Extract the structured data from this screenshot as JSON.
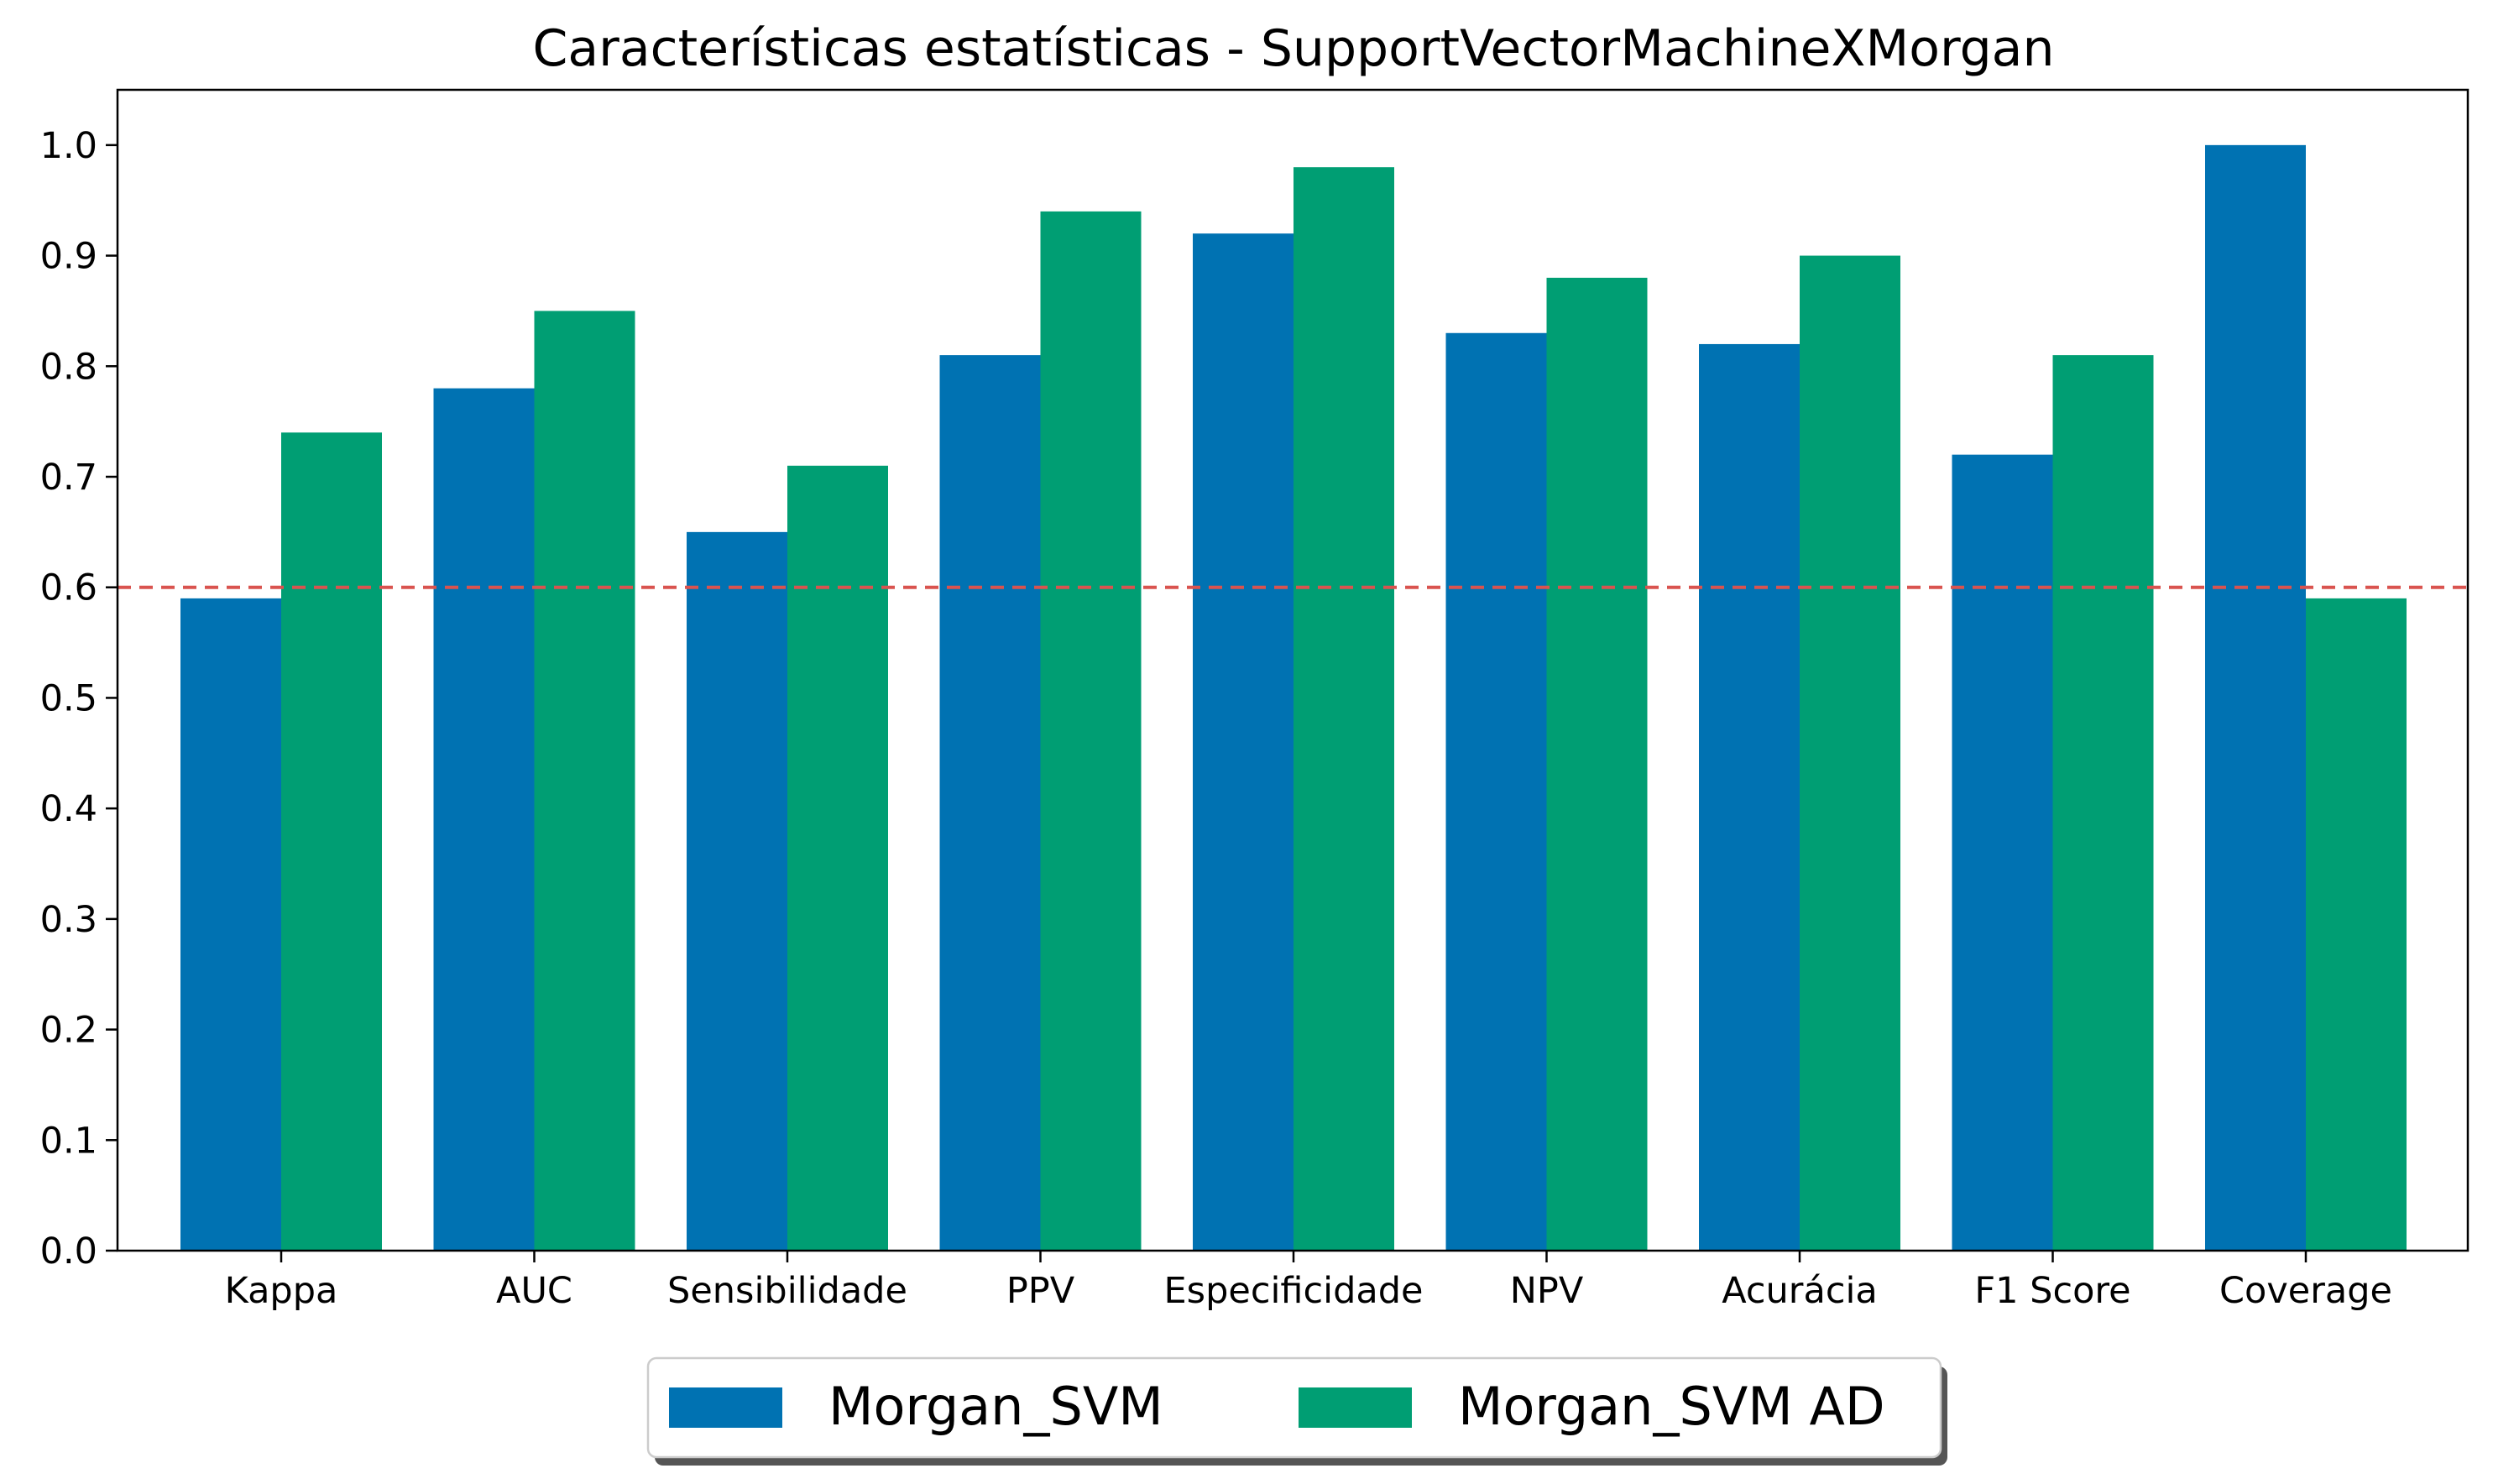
{
  "chart_data": {
    "type": "bar",
    "title": "Características estatísticas - SupportVectorMachineXMorgan",
    "xlabel": "",
    "ylabel": "",
    "categories": [
      "Kappa",
      "AUC",
      "Sensibilidade",
      "PPV",
      "Especificidade",
      "NPV",
      "Acurácia",
      "F1 Score",
      "Coverage"
    ],
    "series": [
      {
        "name": "Morgan_SVM",
        "color": "#0072b2",
        "values": [
          0.59,
          0.78,
          0.65,
          0.81,
          0.92,
          0.83,
          0.82,
          0.72,
          1.0
        ]
      },
      {
        "name": "Morgan_SVM AD",
        "color": "#009e73",
        "values": [
          0.74,
          0.85,
          0.71,
          0.94,
          0.98,
          0.88,
          0.9,
          0.81,
          0.59
        ]
      }
    ],
    "ylim": [
      0,
      1.05
    ],
    "yticks": [
      "0.0",
      "0.1",
      "0.2",
      "0.3",
      "0.4",
      "0.5",
      "0.6",
      "0.7",
      "0.8",
      "0.9",
      "1.0"
    ],
    "reference_line": {
      "value": 0.6,
      "color": "#d9534f",
      "style": "dashed"
    },
    "grid": false,
    "legend_position": "bottom-center"
  }
}
